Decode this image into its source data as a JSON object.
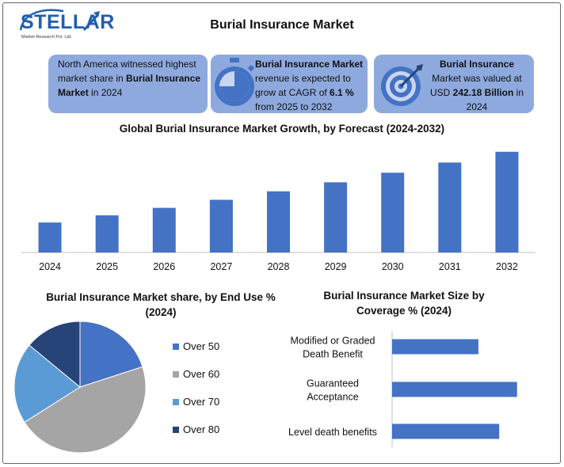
{
  "brand": {
    "name": "STELLAR",
    "tagline": "Market Research Pvt. Ltd."
  },
  "title": "Burial Insurance Market",
  "highlights": [
    {
      "pre": "North America witnessed highest market share in ",
      "bold": "Burial Insurance Market",
      "post": " in 2024",
      "icon": "none"
    },
    {
      "bold_lead": "Burial Insurance Market",
      "pre": " revenue is expected to grow at CAGR of ",
      "bold": "6.1 %",
      "post": " from 2025 to 2032",
      "icon": "stopwatch-icon"
    },
    {
      "bold_lead": "Burial Insurance",
      "pre": " Market was valued at USD ",
      "bold": "242.18 Billion",
      "post": " in 2024",
      "icon": "target-icon"
    }
  ],
  "colors": {
    "bar": "#4472c4",
    "box": "#8ea9de"
  },
  "chart_data": [
    {
      "type": "bar",
      "title": "Global Burial Insurance Market Growth, by Forecast (2024-2032)",
      "categories": [
        "2024",
        "2025",
        "2026",
        "2027",
        "2028",
        "2029",
        "2030",
        "2031",
        "2032"
      ],
      "values": [
        242.18,
        257.0,
        272.6,
        289.3,
        306.9,
        325.6,
        345.5,
        366.6,
        388.9
      ],
      "xlabel": "",
      "ylabel": "",
      "ylim": [
        180,
        400
      ],
      "grid": false
    },
    {
      "type": "pie",
      "title": "Burial Insurance Market share, by End Use % (2024)",
      "labels": [
        "Over 50",
        "Over 60",
        "Over 70",
        "Over 80"
      ],
      "values": [
        20,
        46,
        20,
        14
      ],
      "colors": [
        "#4472c4",
        "#a5a5a5",
        "#5b9bd5",
        "#264478"
      ],
      "legend": "right"
    },
    {
      "type": "bar",
      "orientation": "horizontal",
      "title": "Burial Insurance Market Size by Coverage % (2024)",
      "categories": [
        "Modified or Graded Death Benefit",
        "Guaranteed Acceptance",
        "Level death benefits"
      ],
      "category_lines": [
        [
          "Modified or Graded",
          "Death Benefit"
        ],
        [
          "Guaranteed",
          "Acceptance"
        ],
        [
          "Level death benefits"
        ]
      ],
      "values": [
        29,
        42,
        36
      ],
      "xlim": [
        0,
        45
      ]
    }
  ]
}
